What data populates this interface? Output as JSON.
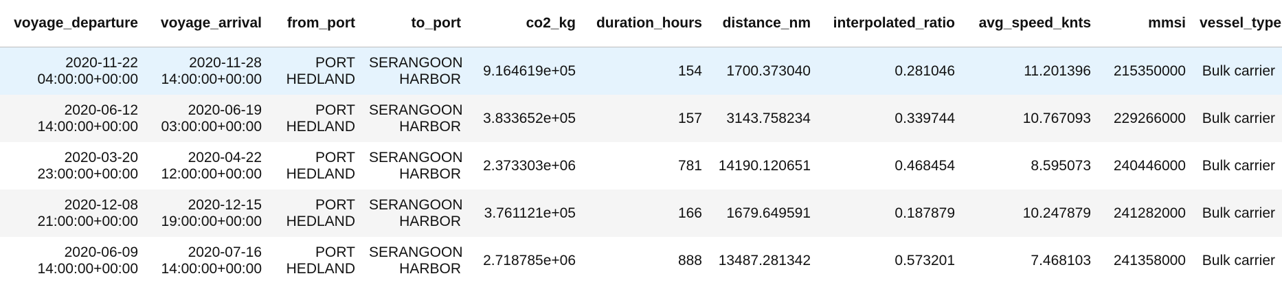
{
  "table": {
    "columns": [
      "voyage_departure",
      "voyage_arrival",
      "from_port",
      "to_port",
      "co2_kg",
      "duration_hours",
      "distance_nm",
      "interpolated_ratio",
      "avg_speed_knts",
      "mmsi",
      "vessel_type"
    ],
    "rows": [
      {
        "departure": [
          "2020-11-22",
          "04:00:00+00:00"
        ],
        "arrival": [
          "2020-11-28",
          "14:00:00+00:00"
        ],
        "from_port": [
          "PORT",
          "HEDLAND"
        ],
        "to_port": [
          "SERANGOON",
          "HARBOR"
        ],
        "co2_kg": "9.164619e+05",
        "duration_hours": "154",
        "distance_nm": "1700.373040",
        "interpolated_ratio": "0.281046",
        "avg_speed_knts": "11.201396",
        "mmsi": "215350000",
        "vessel_type": "Bulk carrier"
      },
      {
        "departure": [
          "2020-06-12",
          "14:00:00+00:00"
        ],
        "arrival": [
          "2020-06-19",
          "03:00:00+00:00"
        ],
        "from_port": [
          "PORT",
          "HEDLAND"
        ],
        "to_port": [
          "SERANGOON",
          "HARBOR"
        ],
        "co2_kg": "3.833652e+05",
        "duration_hours": "157",
        "distance_nm": "3143.758234",
        "interpolated_ratio": "0.339744",
        "avg_speed_knts": "10.767093",
        "mmsi": "229266000",
        "vessel_type": "Bulk carrier"
      },
      {
        "departure": [
          "2020-03-20",
          "23:00:00+00:00"
        ],
        "arrival": [
          "2020-04-22",
          "12:00:00+00:00"
        ],
        "from_port": [
          "PORT",
          "HEDLAND"
        ],
        "to_port": [
          "SERANGOON",
          "HARBOR"
        ],
        "co2_kg": "2.373303e+06",
        "duration_hours": "781",
        "distance_nm": "14190.120651",
        "interpolated_ratio": "0.468454",
        "avg_speed_knts": "8.595073",
        "mmsi": "240446000",
        "vessel_type": "Bulk carrier"
      },
      {
        "departure": [
          "2020-12-08",
          "21:00:00+00:00"
        ],
        "arrival": [
          "2020-12-15",
          "19:00:00+00:00"
        ],
        "from_port": [
          "PORT",
          "HEDLAND"
        ],
        "to_port": [
          "SERANGOON",
          "HARBOR"
        ],
        "co2_kg": "3.761121e+05",
        "duration_hours": "166",
        "distance_nm": "1679.649591",
        "interpolated_ratio": "0.187879",
        "avg_speed_knts": "10.247879",
        "mmsi": "241282000",
        "vessel_type": "Bulk carrier"
      },
      {
        "departure": [
          "2020-06-09",
          "14:00:00+00:00"
        ],
        "arrival": [
          "2020-07-16",
          "14:00:00+00:00"
        ],
        "from_port": [
          "PORT",
          "HEDLAND"
        ],
        "to_port": [
          "SERANGOON",
          "HARBOR"
        ],
        "co2_kg": "2.718785e+06",
        "duration_hours": "888",
        "distance_nm": "13487.281342",
        "interpolated_ratio": "0.573201",
        "avg_speed_knts": "7.468103",
        "mmsi": "241358000",
        "vessel_type": "Bulk carrier"
      }
    ]
  }
}
